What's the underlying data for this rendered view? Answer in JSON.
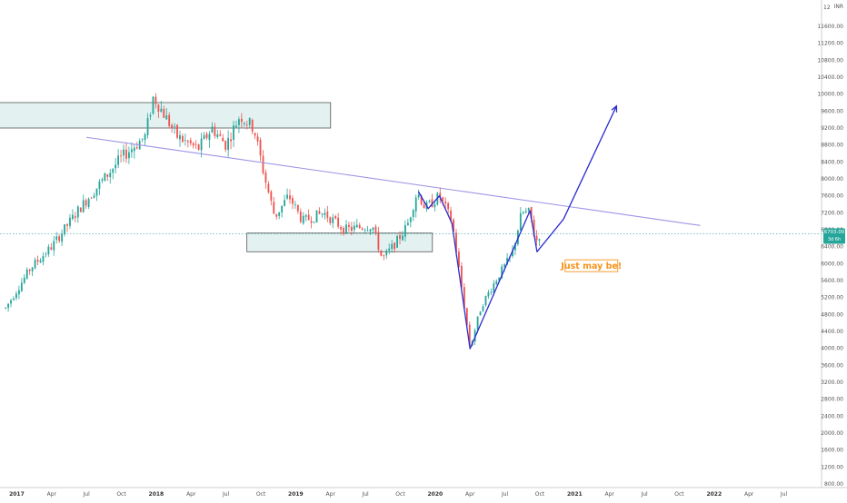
{
  "chart_data": {
    "type": "candlestick",
    "currency": "INR",
    "price_axis": {
      "ticks": [
        11600,
        11200,
        10800,
        10400,
        10000,
        9600,
        9200,
        8800,
        8400,
        8000,
        7600,
        7200,
        6800,
        6400,
        6000,
        5600,
        5200,
        4800,
        4400,
        4000,
        3600,
        3200,
        2800,
        2400,
        2000,
        1600,
        1200,
        800
      ],
      "tick_labels": [
        "11600.00",
        "11200.00",
        "10800.00",
        "10400.00",
        "10000.00",
        "9600.00",
        "9200.00",
        "8800.00",
        "8400.00",
        "8000.00",
        "7600.00",
        "7200.00",
        "6800.00",
        "6400.00",
        "6000.00",
        "5600.00",
        "5200.00",
        "4800.00",
        "4400.00",
        "4000.00",
        "3600.00",
        "3200.00",
        "2800.00",
        "2400.00",
        "2000.00",
        "1600.00",
        "1200.00",
        "800.00"
      ],
      "top_label": "12",
      "last_price_label": "6703.00",
      "last_price": 6703,
      "last_price_sub": "3d 6h"
    },
    "time_axis": {
      "labels": [
        {
          "t": 2017.0,
          "text": "2017",
          "year": true
        },
        {
          "t": 2017.25,
          "text": "Apr"
        },
        {
          "t": 2017.5,
          "text": "Jul"
        },
        {
          "t": 2017.75,
          "text": "Oct"
        },
        {
          "t": 2018.0,
          "text": "2018",
          "year": true
        },
        {
          "t": 2018.25,
          "text": "Apr"
        },
        {
          "t": 2018.5,
          "text": "Jul"
        },
        {
          "t": 2018.75,
          "text": "Oct"
        },
        {
          "t": 2019.0,
          "text": "2019",
          "year": true
        },
        {
          "t": 2019.25,
          "text": "Apr"
        },
        {
          "t": 2019.5,
          "text": "Jul"
        },
        {
          "t": 2019.75,
          "text": "Oct"
        },
        {
          "t": 2020.0,
          "text": "2020",
          "year": true
        },
        {
          "t": 2020.25,
          "text": "Apr"
        },
        {
          "t": 2020.5,
          "text": "Jul"
        },
        {
          "t": 2020.75,
          "text": "Oct"
        },
        {
          "t": 2021.0,
          "text": "2021",
          "year": true
        },
        {
          "t": 2021.25,
          "text": "Apr"
        },
        {
          "t": 2021.5,
          "text": "Jul"
        },
        {
          "t": 2021.75,
          "text": "Oct"
        },
        {
          "t": 2022.0,
          "text": "2022",
          "year": true
        },
        {
          "t": 2022.25,
          "text": "Apr"
        },
        {
          "t": 2022.5,
          "text": "Jul"
        }
      ]
    },
    "price_path": [
      [
        2016.92,
        4950
      ],
      [
        2017.1,
        5900
      ],
      [
        2017.25,
        6400
      ],
      [
        2017.45,
        7300
      ],
      [
        2017.6,
        7900
      ],
      [
        2017.75,
        8500
      ],
      [
        2017.92,
        9000
      ],
      [
        2017.98,
        9950
      ],
      [
        2018.15,
        9000
      ],
      [
        2018.3,
        8700
      ],
      [
        2018.4,
        9200
      ],
      [
        2018.5,
        8800
      ],
      [
        2018.6,
        9500
      ],
      [
        2018.7,
        9200
      ],
      [
        2018.78,
        8000
      ],
      [
        2018.85,
        7100
      ],
      [
        2018.95,
        7600
      ],
      [
        2019.05,
        7000
      ],
      [
        2019.2,
        7200
      ],
      [
        2019.35,
        6800
      ],
      [
        2019.55,
        6900
      ],
      [
        2019.62,
        6100
      ],
      [
        2019.72,
        6500
      ],
      [
        2019.8,
        6900
      ],
      [
        2019.87,
        7700
      ],
      [
        2019.93,
        7300
      ],
      [
        2020.03,
        7600
      ],
      [
        2020.12,
        7000
      ],
      [
        2020.2,
        5200
      ],
      [
        2020.25,
        4000
      ],
      [
        2020.33,
        5000
      ],
      [
        2020.45,
        5700
      ],
      [
        2020.55,
        6200
      ],
      [
        2020.62,
        7200
      ],
      [
        2020.68,
        7200
      ],
      [
        2020.72,
        6500
      ],
      [
        2020.75,
        6700
      ]
    ],
    "zones": [
      {
        "name": "upper-resistance-zone",
        "t0": 2016.65,
        "t1": 2019.25,
        "p_high": 9800,
        "p_low": 9200
      },
      {
        "name": "lower-support-zone",
        "t0": 2018.65,
        "t1": 2019.98,
        "p_high": 6720,
        "p_low": 6280
      }
    ],
    "trendline": {
      "t0": 2017.5,
      "p0": 8980,
      "t1": 2021.9,
      "p1": 6900
    },
    "pattern_path": [
      [
        2019.88,
        7700
      ],
      [
        2019.95,
        7300
      ],
      [
        2020.03,
        7600
      ],
      [
        2020.12,
        6950
      ],
      [
        2020.25,
        3990
      ],
      [
        2020.68,
        7250
      ],
      [
        2020.73,
        6280
      ],
      [
        2020.92,
        7050
      ],
      [
        2021.3,
        9720
      ]
    ],
    "annotation": {
      "text": "Just may be!",
      "t": 2021.12,
      "p": 5950
    }
  },
  "colors": {
    "bull": "#26a69a",
    "bear": "#ef5350",
    "zone_fill": "#e3f2f1",
    "zone_stroke": "#555555",
    "trendline": "#9c95e6",
    "pattern": "#2b2bd1",
    "annotation_text": "#f7931a",
    "annotation_border": "#f7931a",
    "last_price_bg": "#26a69a"
  }
}
